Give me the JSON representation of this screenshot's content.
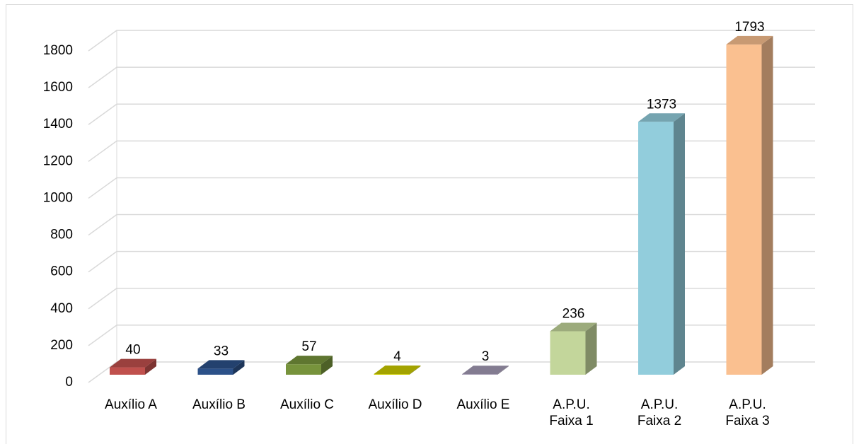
{
  "chart_data": {
    "type": "bar3d",
    "categories": [
      "Auxílio A",
      "Auxílio B",
      "Auxílio C",
      "Auxílio D",
      "Auxílio E",
      "A.P.U.\nFaixa 1",
      "A.P.U.\nFaixa 2",
      "A.P.U.\nFaixa 3"
    ],
    "values": [
      40,
      33,
      57,
      4,
      3,
      236,
      1373,
      1793
    ],
    "colors": [
      "#c0504d",
      "#2c5189",
      "#77933c",
      "#cccc00",
      "#a49bb5",
      "#c3d69b",
      "#92cddc",
      "#fac090"
    ],
    "ylim": [
      0,
      1800
    ],
    "yticks": [
      0,
      200,
      400,
      600,
      800,
      1000,
      1200,
      1400,
      1600,
      1800
    ],
    "grid": true
  }
}
